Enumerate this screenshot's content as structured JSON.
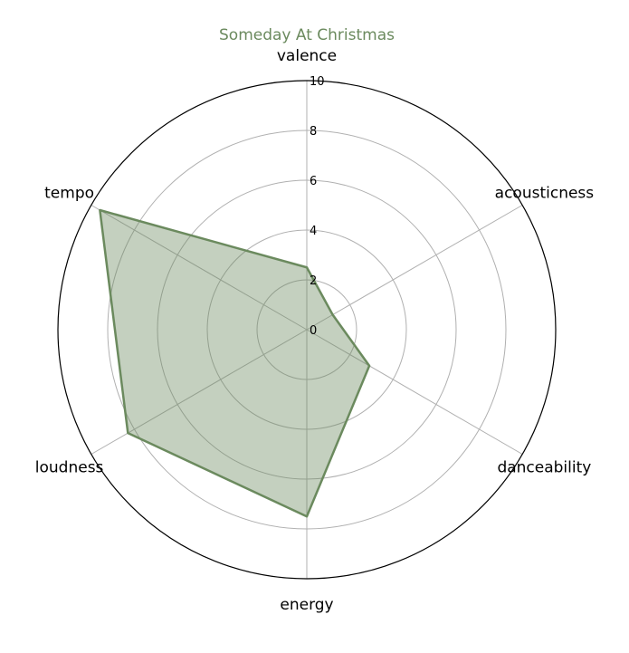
{
  "chart_data": {
    "type": "radar",
    "title": "Someday At Christmas",
    "axes": [
      "valence",
      "acousticness",
      "danceability",
      "energy",
      "loudness",
      "tempo"
    ],
    "series": [
      {
        "values": [
          2.5,
          1.2,
          2.9,
          7.5,
          8.3,
          9.6
        ]
      }
    ],
    "rlim": [
      0,
      10
    ],
    "rticks": [
      0,
      2,
      4,
      6,
      8,
      10
    ],
    "grid": true,
    "colors": {
      "series": "#6b8a5e",
      "fill": "#6b8a5e",
      "title": "#6b8a5e",
      "grid": "#b0b0b0",
      "outline": "#000000"
    }
  }
}
